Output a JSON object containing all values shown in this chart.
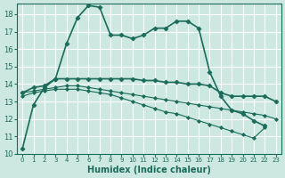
{
  "title": "",
  "xlabel": "Humidex (Indice chaleur)",
  "ylabel": "",
  "background_color": "#cce8e0",
  "grid_color": "#b0d4cc",
  "line_color": "#1a6b5a",
  "xlim": [
    -0.5,
    23.5
  ],
  "ylim": [
    10,
    18.6
  ],
  "yticks": [
    10,
    11,
    12,
    13,
    14,
    15,
    16,
    17,
    18
  ],
  "xticks": [
    0,
    1,
    2,
    3,
    4,
    5,
    6,
    7,
    8,
    9,
    10,
    11,
    12,
    13,
    14,
    15,
    16,
    17,
    18,
    19,
    20,
    21,
    22,
    23
  ],
  "series": [
    {
      "x": [
        0,
        1,
        2,
        3,
        4,
        5,
        6,
        7,
        8,
        9,
        10,
        11,
        12,
        13,
        14,
        15,
        16,
        17,
        18,
        19,
        20,
        21,
        22,
        23
      ],
      "y": [
        10.3,
        12.8,
        13.8,
        14.3,
        16.3,
        17.8,
        18.5,
        18.4,
        16.8,
        16.8,
        16.6,
        16.8,
        17.2,
        17.2,
        17.6,
        17.6,
        17.2,
        14.7,
        13.3,
        12.5,
        12.3,
        11.9,
        11.6,
        null
      ],
      "marker": "D",
      "markersize": 2.5,
      "linewidth": 1.2
    },
    {
      "x": [
        0,
        1,
        2,
        3,
        4,
        5,
        6,
        7,
        8,
        9,
        10,
        11,
        12,
        13,
        14,
        15,
        16,
        17,
        18,
        19,
        20,
        21,
        22,
        23
      ],
      "y": [
        13.5,
        13.8,
        13.9,
        14.3,
        14.3,
        14.3,
        14.3,
        14.3,
        14.3,
        14.3,
        14.3,
        14.2,
        14.2,
        14.1,
        14.1,
        14.0,
        14.0,
        13.9,
        13.5,
        13.3,
        13.3,
        13.3,
        13.3,
        13.0
      ],
      "marker": "D",
      "markersize": 2.5,
      "linewidth": 1.2
    },
    {
      "x": [
        0,
        1,
        2,
        3,
        4,
        5,
        6,
        7,
        8,
        9,
        10,
        11,
        12,
        13,
        14,
        15,
        16,
        17,
        18,
        19,
        20,
        21,
        22,
        23
      ],
      "y": [
        13.5,
        13.6,
        13.7,
        13.8,
        13.9,
        13.9,
        13.8,
        13.7,
        13.6,
        13.5,
        13.4,
        13.3,
        13.2,
        13.1,
        13.0,
        12.9,
        12.8,
        12.7,
        12.6,
        12.5,
        12.4,
        12.3,
        12.2,
        12.0
      ],
      "marker": "D",
      "markersize": 2.0,
      "linewidth": 0.8
    },
    {
      "x": [
        0,
        1,
        2,
        3,
        4,
        5,
        6,
        7,
        8,
        9,
        10,
        11,
        12,
        13,
        14,
        15,
        16,
        17,
        18,
        19,
        20,
        21,
        22,
        23
      ],
      "y": [
        13.3,
        13.5,
        13.6,
        13.7,
        13.7,
        13.7,
        13.6,
        13.5,
        13.4,
        13.2,
        13.0,
        12.8,
        12.6,
        12.4,
        12.3,
        12.1,
        11.9,
        11.7,
        11.5,
        11.3,
        11.1,
        10.9,
        11.5,
        null
      ],
      "marker": "D",
      "markersize": 2.0,
      "linewidth": 0.8
    }
  ]
}
